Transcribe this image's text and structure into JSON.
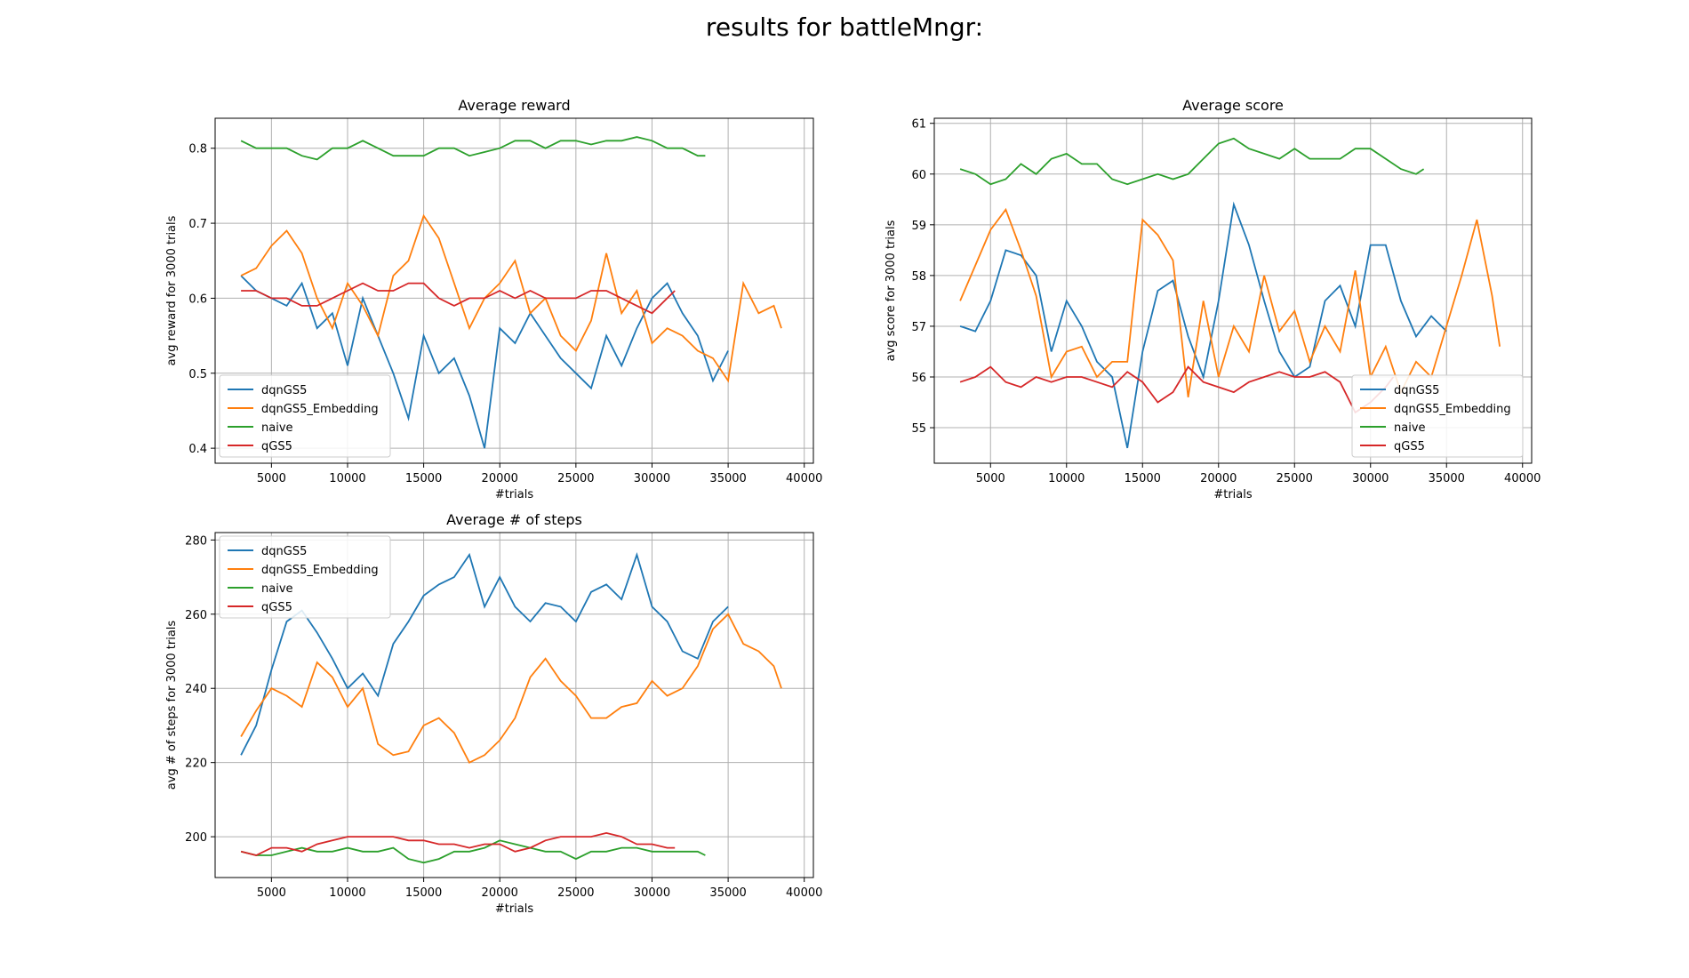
{
  "figure": {
    "suptitle": "results for battleMngr:"
  },
  "colors": {
    "dqnGS5": "#1f77b4",
    "dqnGS5_Embedding": "#ff7f0e",
    "naive": "#2ca02c",
    "qGS5": "#d62728"
  },
  "chart_data": [
    {
      "type": "line",
      "title": "Average reward",
      "xlabel": "#trials",
      "ylabel": "avg reward for 3000 trials",
      "xlim": [
        1300,
        40600
      ],
      "ylim": [
        0.38,
        0.84
      ],
      "xticks": [
        5000,
        10000,
        15000,
        20000,
        25000,
        30000,
        35000,
        40000
      ],
      "yticks": [
        0.4,
        0.5,
        0.6,
        0.7,
        0.8
      ],
      "ytick_labels": [
        "0.4",
        "0.5",
        "0.6",
        "0.7",
        "0.8"
      ],
      "grid": true,
      "legend": "lower-left",
      "series": [
        {
          "name": "dqnGS5",
          "x": [
            3000,
            4000,
            5000,
            6000,
            7000,
            8000,
            9000,
            10000,
            11000,
            12000,
            13000,
            14000,
            15000,
            16000,
            17000,
            18000,
            19000,
            20000,
            21000,
            22000,
            23000,
            24000,
            25000,
            26000,
            27000,
            28000,
            29000,
            30000,
            31000,
            32000,
            33000,
            34000,
            35000
          ],
          "y": [
            0.63,
            0.61,
            0.6,
            0.59,
            0.62,
            0.56,
            0.58,
            0.51,
            0.6,
            0.55,
            0.5,
            0.44,
            0.55,
            0.5,
            0.52,
            0.47,
            0.4,
            0.56,
            0.54,
            0.58,
            0.55,
            0.52,
            0.5,
            0.48,
            0.55,
            0.51,
            0.56,
            0.6,
            0.62,
            0.58,
            0.55,
            0.49,
            0.53
          ]
        },
        {
          "name": "dqnGS5_Embedding",
          "x": [
            3000,
            4000,
            5000,
            6000,
            7000,
            8000,
            9000,
            10000,
            11000,
            12000,
            13000,
            14000,
            15000,
            16000,
            17000,
            18000,
            19000,
            20000,
            21000,
            22000,
            23000,
            24000,
            25000,
            26000,
            27000,
            28000,
            29000,
            30000,
            31000,
            32000,
            33000,
            34000,
            35000,
            36000,
            37000,
            38000,
            38500
          ],
          "y": [
            0.63,
            0.64,
            0.67,
            0.69,
            0.66,
            0.6,
            0.56,
            0.62,
            0.59,
            0.55,
            0.63,
            0.65,
            0.71,
            0.68,
            0.62,
            0.56,
            0.6,
            0.62,
            0.65,
            0.58,
            0.6,
            0.55,
            0.53,
            0.57,
            0.66,
            0.58,
            0.61,
            0.54,
            0.56,
            0.55,
            0.53,
            0.52,
            0.49,
            0.62,
            0.58,
            0.59,
            0.56
          ]
        },
        {
          "name": "naive",
          "x": [
            3000,
            4000,
            5000,
            6000,
            7000,
            8000,
            9000,
            10000,
            11000,
            12000,
            13000,
            14000,
            15000,
            16000,
            17000,
            18000,
            19000,
            20000,
            21000,
            22000,
            23000,
            24000,
            25000,
            26000,
            27000,
            28000,
            29000,
            30000,
            31000,
            32000,
            33000,
            33500
          ],
          "y": [
            0.81,
            0.8,
            0.8,
            0.8,
            0.79,
            0.785,
            0.8,
            0.8,
            0.81,
            0.8,
            0.79,
            0.79,
            0.79,
            0.8,
            0.8,
            0.79,
            0.795,
            0.8,
            0.81,
            0.81,
            0.8,
            0.81,
            0.81,
            0.805,
            0.81,
            0.81,
            0.815,
            0.81,
            0.8,
            0.8,
            0.79,
            0.79
          ]
        },
        {
          "name": "qGS5",
          "x": [
            3000,
            4000,
            5000,
            6000,
            7000,
            8000,
            9000,
            10000,
            11000,
            12000,
            13000,
            14000,
            15000,
            16000,
            17000,
            18000,
            19000,
            20000,
            21000,
            22000,
            23000,
            24000,
            25000,
            26000,
            27000,
            28000,
            29000,
            30000,
            31000,
            31500
          ],
          "y": [
            0.61,
            0.61,
            0.6,
            0.6,
            0.59,
            0.59,
            0.6,
            0.61,
            0.62,
            0.61,
            0.61,
            0.62,
            0.62,
            0.6,
            0.59,
            0.6,
            0.6,
            0.61,
            0.6,
            0.61,
            0.6,
            0.6,
            0.6,
            0.61,
            0.61,
            0.6,
            0.59,
            0.58,
            0.6,
            0.61
          ]
        }
      ]
    },
    {
      "type": "line",
      "title": "Average score",
      "xlabel": "#trials",
      "ylabel": "avg score for 3000 trials",
      "xlim": [
        1300,
        40600
      ],
      "ylim": [
        54.3,
        61.1
      ],
      "xticks": [
        5000,
        10000,
        15000,
        20000,
        25000,
        30000,
        35000,
        40000
      ],
      "yticks": [
        55,
        56,
        57,
        58,
        59,
        60,
        61
      ],
      "ytick_labels": [
        "55",
        "56",
        "57",
        "58",
        "59",
        "60",
        "61"
      ],
      "grid": true,
      "legend": "lower-right",
      "series": [
        {
          "name": "dqnGS5",
          "x": [
            3000,
            4000,
            5000,
            6000,
            7000,
            8000,
            9000,
            10000,
            11000,
            12000,
            13000,
            14000,
            15000,
            16000,
            17000,
            18000,
            19000,
            20000,
            21000,
            22000,
            23000,
            24000,
            25000,
            26000,
            27000,
            28000,
            29000,
            30000,
            31000,
            32000,
            33000,
            34000,
            35000
          ],
          "y": [
            57.0,
            56.9,
            57.5,
            58.5,
            58.4,
            58.0,
            56.5,
            57.5,
            57.0,
            56.3,
            56.0,
            54.6,
            56.5,
            57.7,
            57.9,
            56.8,
            56.0,
            57.5,
            59.4,
            58.6,
            57.5,
            56.5,
            56.0,
            56.2,
            57.5,
            57.8,
            57.0,
            58.6,
            58.6,
            57.5,
            56.8,
            57.2,
            56.9
          ]
        },
        {
          "name": "dqnGS5_Embedding",
          "x": [
            3000,
            4000,
            5000,
            6000,
            7000,
            8000,
            9000,
            10000,
            11000,
            12000,
            13000,
            14000,
            15000,
            16000,
            17000,
            18000,
            19000,
            20000,
            21000,
            22000,
            23000,
            24000,
            25000,
            26000,
            27000,
            28000,
            29000,
            30000,
            31000,
            32000,
            33000,
            34000,
            35000,
            36000,
            37000,
            38000,
            38500
          ],
          "y": [
            57.5,
            58.2,
            58.9,
            59.3,
            58.5,
            57.6,
            56.0,
            56.5,
            56.6,
            56.0,
            56.3,
            56.3,
            59.1,
            58.8,
            58.3,
            55.6,
            57.5,
            56.0,
            57.0,
            56.5,
            58.0,
            56.9,
            57.3,
            56.3,
            57.0,
            56.5,
            58.1,
            56.0,
            56.6,
            55.7,
            56.3,
            56.0,
            57.0,
            58.0,
            59.1,
            57.6,
            56.6
          ]
        },
        {
          "name": "naive",
          "x": [
            3000,
            4000,
            5000,
            6000,
            7000,
            8000,
            9000,
            10000,
            11000,
            12000,
            13000,
            14000,
            15000,
            16000,
            17000,
            18000,
            19000,
            20000,
            21000,
            22000,
            23000,
            24000,
            25000,
            26000,
            27000,
            28000,
            29000,
            30000,
            31000,
            32000,
            33000,
            33500
          ],
          "y": [
            60.1,
            60.0,
            59.8,
            59.9,
            60.2,
            60.0,
            60.3,
            60.4,
            60.2,
            60.2,
            59.9,
            59.8,
            59.9,
            60.0,
            59.9,
            60.0,
            60.3,
            60.6,
            60.7,
            60.5,
            60.4,
            60.3,
            60.5,
            60.3,
            60.3,
            60.3,
            60.5,
            60.5,
            60.3,
            60.1,
            60.0,
            60.1
          ]
        },
        {
          "name": "qGS5",
          "x": [
            3000,
            4000,
            5000,
            6000,
            7000,
            8000,
            9000,
            10000,
            11000,
            12000,
            13000,
            14000,
            15000,
            16000,
            17000,
            18000,
            19000,
            20000,
            21000,
            22000,
            23000,
            24000,
            25000,
            26000,
            27000,
            28000,
            29000,
            30000,
            31000,
            31500
          ],
          "y": [
            55.9,
            56.0,
            56.2,
            55.9,
            55.8,
            56.0,
            55.9,
            56.0,
            56.0,
            55.9,
            55.8,
            56.1,
            55.9,
            55.5,
            55.7,
            56.2,
            55.9,
            55.8,
            55.7,
            55.9,
            56.0,
            56.1,
            56.0,
            56.0,
            56.1,
            55.9,
            55.3,
            55.5,
            55.8,
            56.0
          ]
        }
      ]
    },
    {
      "type": "line",
      "title": "Average # of steps",
      "xlabel": "#trials",
      "ylabel": "avg # of steps for 3000 trials",
      "xlim": [
        1300,
        40600
      ],
      "ylim": [
        189,
        282
      ],
      "xticks": [
        5000,
        10000,
        15000,
        20000,
        25000,
        30000,
        35000,
        40000
      ],
      "yticks": [
        200,
        220,
        240,
        260,
        280
      ],
      "ytick_labels": [
        "200",
        "220",
        "240",
        "260",
        "280"
      ],
      "grid": true,
      "legend": "upper-left",
      "series": [
        {
          "name": "dqnGS5",
          "x": [
            3000,
            4000,
            5000,
            6000,
            7000,
            8000,
            9000,
            10000,
            11000,
            12000,
            13000,
            14000,
            15000,
            16000,
            17000,
            18000,
            19000,
            20000,
            21000,
            22000,
            23000,
            24000,
            25000,
            26000,
            27000,
            28000,
            29000,
            30000,
            31000,
            32000,
            33000,
            34000,
            35000
          ],
          "y": [
            222,
            230,
            245,
            258,
            261,
            255,
            248,
            240,
            244,
            238,
            252,
            258,
            265,
            268,
            270,
            276,
            262,
            270,
            262,
            258,
            263,
            262,
            258,
            266,
            268,
            264,
            276,
            262,
            258,
            250,
            248,
            258,
            262
          ]
        },
        {
          "name": "dqnGS5_Embedding",
          "x": [
            3000,
            4000,
            5000,
            6000,
            7000,
            8000,
            9000,
            10000,
            11000,
            12000,
            13000,
            14000,
            15000,
            16000,
            17000,
            18000,
            19000,
            20000,
            21000,
            22000,
            23000,
            24000,
            25000,
            26000,
            27000,
            28000,
            29000,
            30000,
            31000,
            32000,
            33000,
            34000,
            35000,
            36000,
            37000,
            38000,
            38500
          ],
          "y": [
            227,
            234,
            240,
            238,
            235,
            247,
            243,
            235,
            240,
            225,
            222,
            223,
            230,
            232,
            228,
            220,
            222,
            226,
            232,
            243,
            248,
            242,
            238,
            232,
            232,
            235,
            236,
            242,
            238,
            240,
            246,
            256,
            260,
            252,
            250,
            246,
            240
          ]
        },
        {
          "name": "naive",
          "x": [
            3000,
            4000,
            5000,
            6000,
            7000,
            8000,
            9000,
            10000,
            11000,
            12000,
            13000,
            14000,
            15000,
            16000,
            17000,
            18000,
            19000,
            20000,
            21000,
            22000,
            23000,
            24000,
            25000,
            26000,
            27000,
            28000,
            29000,
            30000,
            31000,
            32000,
            33000,
            33500
          ],
          "y": [
            196,
            195,
            195,
            196,
            197,
            196,
            196,
            197,
            196,
            196,
            197,
            194,
            193,
            194,
            196,
            196,
            197,
            199,
            198,
            197,
            196,
            196,
            194,
            196,
            196,
            197,
            197,
            196,
            196,
            196,
            196,
            195
          ]
        },
        {
          "name": "qGS5",
          "x": [
            3000,
            4000,
            5000,
            6000,
            7000,
            8000,
            9000,
            10000,
            11000,
            12000,
            13000,
            14000,
            15000,
            16000,
            17000,
            18000,
            19000,
            20000,
            21000,
            22000,
            23000,
            24000,
            25000,
            26000,
            27000,
            28000,
            29000,
            30000,
            31000,
            31500
          ],
          "y": [
            196,
            195,
            197,
            197,
            196,
            198,
            199,
            200,
            200,
            200,
            200,
            199,
            199,
            198,
            198,
            197,
            198,
            198,
            196,
            197,
            199,
            200,
            200,
            200,
            201,
            200,
            198,
            198,
            197,
            197
          ]
        }
      ]
    }
  ]
}
